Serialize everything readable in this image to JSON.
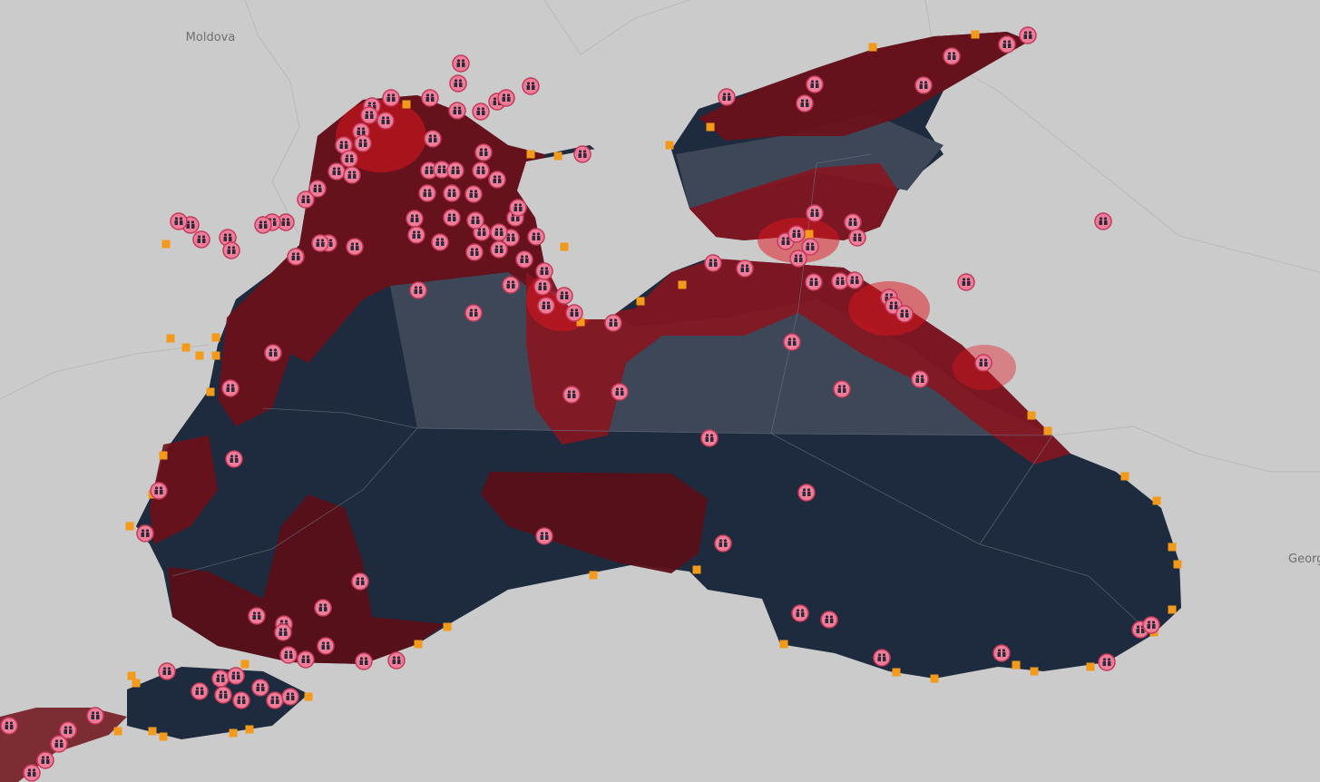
{
  "map": {
    "labels": [
      "Moldova",
      "Georg"
    ]
  }
}
